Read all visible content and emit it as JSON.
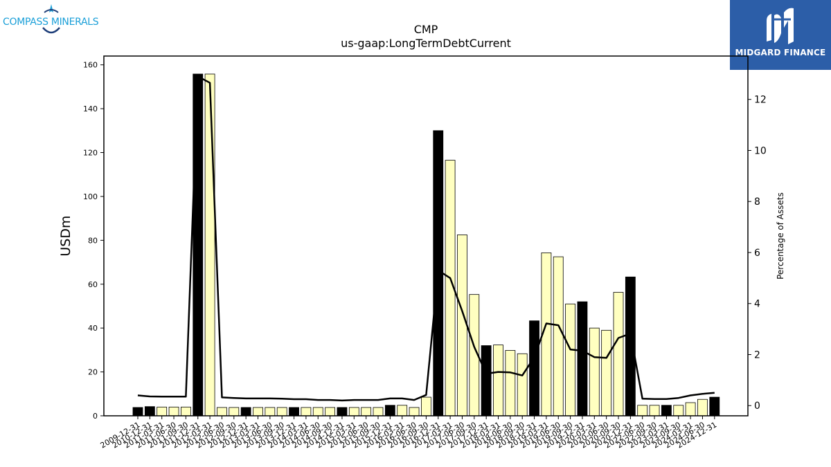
{
  "logos": {
    "left_brand": "COMPASS MINERALS",
    "right_brand": "MIDGARD FINANCE",
    "left_icon": "compass-star-icon",
    "right_icon": "midgard-m-icon",
    "colors": {
      "compass_blue": "#1a9fd8",
      "compass_navy": "#1f3f7a",
      "midgard_blue": "#2c5ea8"
    }
  },
  "chart_data": {
    "type": "bar",
    "title": "CMP",
    "subtitle": "us-gaap:LongTermDebtCurrent",
    "ylabel": "USDm",
    "y2label": "Percentage of Assets",
    "ylim": [
      0,
      164
    ],
    "y2lim": [
      -0.4,
      13.7
    ],
    "yticks": [
      0,
      20,
      40,
      60,
      80,
      100,
      120,
      140,
      160
    ],
    "y2ticks": [
      0,
      2,
      4,
      6,
      8,
      10,
      12
    ],
    "grid": false,
    "colors": {
      "annual_bar": "#000000",
      "quarter_bar": "#ffffc0",
      "line": "#000000"
    },
    "categories": [
      "2009-12-31",
      "2010-12-31",
      "2011-03-31",
      "2011-06-30",
      "2011-09-30",
      "2011-12-31",
      "2012-03-31",
      "2012-06-30",
      "2012-09-30",
      "2012-12-31",
      "2013-03-31",
      "2013-06-30",
      "2013-09-30",
      "2013-12-31",
      "2014-03-31",
      "2014-06-30",
      "2014-09-30",
      "2014-12-31",
      "2015-03-31",
      "2015-06-30",
      "2015-09-30",
      "2015-12-31",
      "2016-03-31",
      "2016-06-30",
      "2016-09-30",
      "2016-12-31",
      "2017-03-31",
      "2017-06-30",
      "2017-09-30",
      "2017-12-31",
      "2018-03-31",
      "2018-06-30",
      "2018-09-30",
      "2018-12-31",
      "2019-03-31",
      "2019-06-30",
      "2019-09-30",
      "2019-12-31",
      "2020-03-31",
      "2020-06-30",
      "2020-09-30",
      "2020-12-31",
      "2022-06-30",
      "2022-09-30",
      "2023-03-31",
      "2023-09-30",
      "2024-03-31",
      "2024-06-30",
      "2024-12-31"
    ],
    "series": [
      {
        "name": "USDm",
        "values": [
          3.8,
          4.2,
          4.0,
          4.0,
          4.0,
          155.8,
          155.8,
          3.8,
          3.8,
          3.8,
          3.8,
          3.8,
          3.8,
          3.8,
          3.8,
          3.8,
          3.8,
          3.8,
          3.8,
          3.8,
          3.8,
          4.8,
          4.8,
          3.8,
          8.5,
          130.0,
          116.5,
          82.5,
          55.3,
          32.0,
          32.3,
          29.8,
          28.3,
          43.3,
          74.3,
          72.5,
          51.0,
          52.0,
          40.0,
          39.0,
          56.3,
          63.3,
          4.8,
          4.8,
          4.8,
          4.8,
          6.0,
          7.5,
          8.5
        ],
        "annual": [
          true,
          true,
          false,
          false,
          false,
          true,
          false,
          false,
          false,
          true,
          false,
          false,
          false,
          true,
          false,
          false,
          false,
          true,
          false,
          false,
          false,
          true,
          false,
          false,
          false,
          true,
          false,
          false,
          false,
          true,
          false,
          false,
          false,
          true,
          false,
          false,
          false,
          true,
          false,
          false,
          false,
          true,
          false,
          false,
          true,
          false,
          false,
          false,
          true
        ]
      },
      {
        "name": "Percentage of Assets",
        "axis": "right",
        "values": [
          0.4,
          0.36,
          0.35,
          0.35,
          0.35,
          12.9,
          12.65,
          0.32,
          0.3,
          0.28,
          0.28,
          0.28,
          0.27,
          0.25,
          0.25,
          0.22,
          0.22,
          0.2,
          0.22,
          0.22,
          0.22,
          0.28,
          0.28,
          0.22,
          0.42,
          5.3,
          5.0,
          3.7,
          2.3,
          1.25,
          1.32,
          1.3,
          1.18,
          1.9,
          3.22,
          3.15,
          2.2,
          2.15,
          1.9,
          1.87,
          2.65,
          2.82,
          0.27,
          0.26,
          0.26,
          0.3,
          0.4,
          0.46,
          0.5
        ]
      }
    ]
  }
}
